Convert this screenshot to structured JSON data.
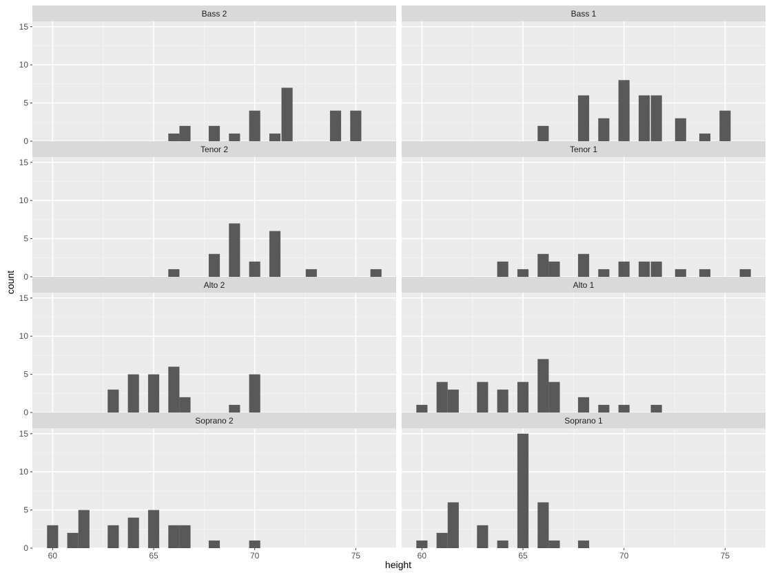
{
  "chart_data": {
    "type": "bar",
    "subtype": "faceted-histogram",
    "xlabel": "height",
    "ylabel": "count",
    "xlim": [
      59,
      77
    ],
    "ylim": [
      0,
      15.7
    ],
    "xticks": [
      60,
      65,
      70,
      75
    ],
    "yticks": [
      0,
      5,
      10,
      15
    ],
    "bin_width": 0.55,
    "bar_color": "#595959",
    "panel_background": "#ebebeb",
    "strip_background": "#d9d9d9",
    "grid": true,
    "panels": [
      {
        "label": "Bass 2",
        "bins": [
          [
            66,
            1
          ],
          [
            66.55,
            2
          ],
          [
            68,
            2
          ],
          [
            69,
            1
          ],
          [
            70,
            4
          ],
          [
            71,
            1
          ],
          [
            71.6,
            7
          ],
          [
            74,
            4
          ],
          [
            75,
            4
          ]
        ]
      },
      {
        "label": "Bass 1",
        "bins": [
          [
            66,
            2
          ],
          [
            68,
            6
          ],
          [
            69,
            3
          ],
          [
            70,
            8
          ],
          [
            71,
            6
          ],
          [
            71.6,
            6
          ],
          [
            72.8,
            3
          ],
          [
            74,
            1
          ],
          [
            75,
            4
          ]
        ]
      },
      {
        "label": "Tenor 2",
        "bins": [
          [
            66,
            1
          ],
          [
            68,
            3
          ],
          [
            69,
            7
          ],
          [
            70,
            2
          ],
          [
            71,
            6
          ],
          [
            72.8,
            1
          ],
          [
            76,
            1
          ]
        ]
      },
      {
        "label": "Tenor 1",
        "bins": [
          [
            64,
            2
          ],
          [
            65,
            1
          ],
          [
            66,
            3
          ],
          [
            66.55,
            2
          ],
          [
            68,
            3
          ],
          [
            69,
            1
          ],
          [
            70,
            2
          ],
          [
            71,
            2
          ],
          [
            71.6,
            2
          ],
          [
            72.8,
            1
          ],
          [
            74,
            1
          ],
          [
            76,
            1
          ]
        ]
      },
      {
        "label": "Alto 2",
        "bins": [
          [
            63,
            3
          ],
          [
            64,
            5
          ],
          [
            65,
            5
          ],
          [
            66,
            6
          ],
          [
            66.55,
            2
          ],
          [
            69,
            1
          ],
          [
            70,
            5
          ]
        ]
      },
      {
        "label": "Alto 1",
        "bins": [
          [
            60,
            1
          ],
          [
            61,
            4
          ],
          [
            61.55,
            3
          ],
          [
            63,
            4
          ],
          [
            64,
            3
          ],
          [
            65,
            4
          ],
          [
            66,
            7
          ],
          [
            66.55,
            4
          ],
          [
            68,
            2
          ],
          [
            69,
            1
          ],
          [
            70,
            1
          ],
          [
            71.6,
            1
          ]
        ]
      },
      {
        "label": "Soprano 2",
        "bins": [
          [
            60,
            3
          ],
          [
            61,
            2
          ],
          [
            61.55,
            5
          ],
          [
            63,
            3
          ],
          [
            64,
            4
          ],
          [
            65,
            5
          ],
          [
            66,
            3
          ],
          [
            66.55,
            3
          ],
          [
            68,
            1
          ],
          [
            70,
            1
          ]
        ]
      },
      {
        "label": "Soprano 1",
        "bins": [
          [
            60,
            1
          ],
          [
            61,
            2
          ],
          [
            61.55,
            6
          ],
          [
            63,
            3
          ],
          [
            64,
            1
          ],
          [
            65,
            15
          ],
          [
            66,
            6
          ],
          [
            66.55,
            1
          ],
          [
            68,
            1
          ]
        ]
      }
    ]
  }
}
